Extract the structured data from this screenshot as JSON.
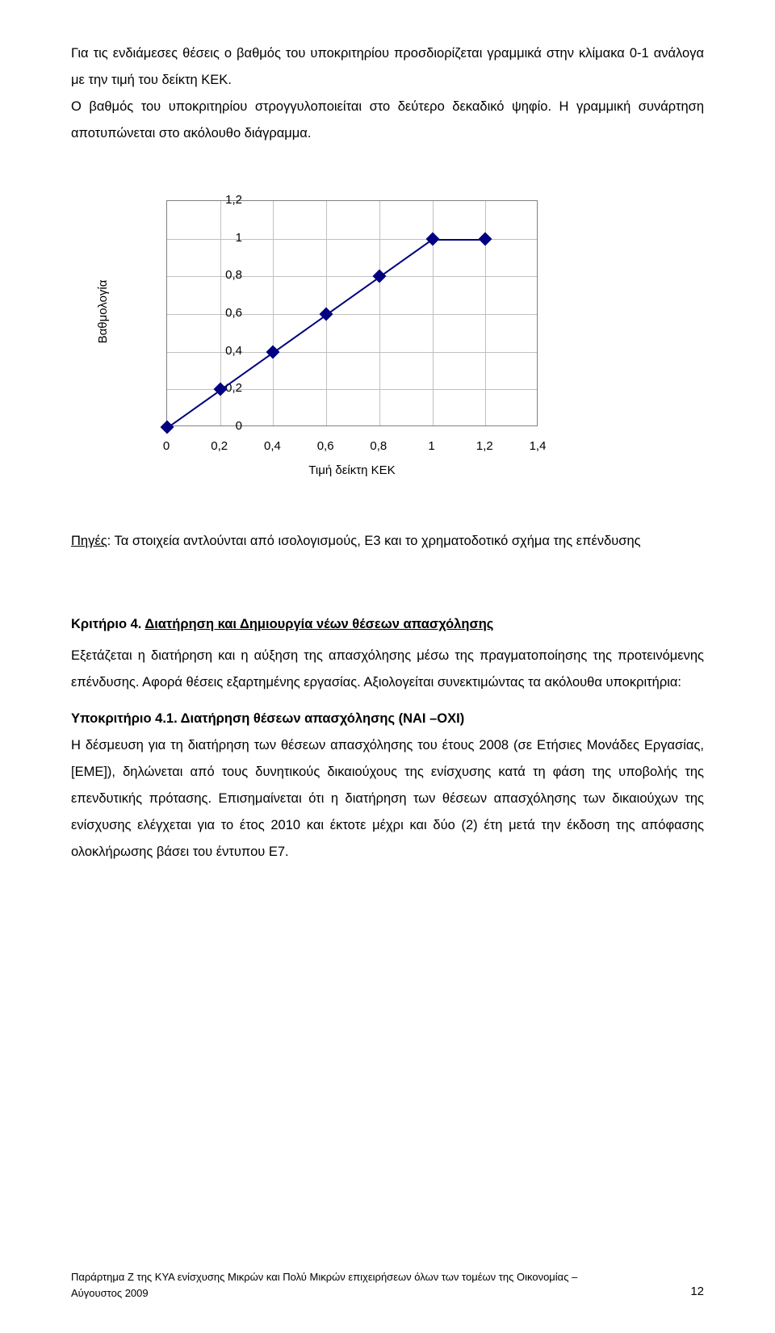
{
  "para1": "Για τις ενδιάμεσες θέσεις ο βαθμός του υποκριτηρίου προσδιορίζεται γραμμικά στην κλίμακα 0-1 ανάλογα με την τιμή του δείκτη ΚΕΚ.",
  "para2": "Ο βαθμός του υποκριτηρίου στρογγυλοποιείται στο δεύτερο δεκαδικό ψηφίο. Η γραμμική συνάρτηση αποτυπώνεται στο ακόλουθο διάγραμμα.",
  "chart": {
    "type": "line",
    "y_axis_label": "Βαθμολογία",
    "x_axis_label": "Τιμή δείκτη ΚΕΚ",
    "xmin": 0,
    "xmax": 1.4,
    "ymin": 0,
    "ymax": 1.2,
    "x_ticks": [
      0,
      0.2,
      0.4,
      0.6,
      0.8,
      1,
      1.2,
      1.4
    ],
    "x_tick_labels": [
      "0",
      "0,2",
      "0,4",
      "0,6",
      "0,8",
      "1",
      "1,2",
      "1,4"
    ],
    "y_ticks": [
      0,
      0.2,
      0.4,
      0.6,
      0.8,
      1,
      1.2
    ],
    "y_tick_labels": [
      "0",
      "0,2",
      "0,4",
      "0,6",
      "0,8",
      "1",
      "1,2"
    ],
    "points": [
      {
        "x": 0.0,
        "y": 0.0
      },
      {
        "x": 0.2,
        "y": 0.2
      },
      {
        "x": 0.4,
        "y": 0.4
      },
      {
        "x": 0.6,
        "y": 0.6
      },
      {
        "x": 0.8,
        "y": 0.8
      },
      {
        "x": 1.0,
        "y": 1.0
      },
      {
        "x": 1.2,
        "y": 1.0
      }
    ],
    "line_color": "#000080",
    "marker_color": "#000080",
    "marker_shape": "diamond",
    "grid_color": "#c0c0c0",
    "plot_border_color": "#808080",
    "background_color": "#ffffff",
    "label_fontsize": 15,
    "tick_fontsize": 15
  },
  "sources_label": "Πηγές",
  "sources_text": ": Τα στοιχεία αντλούνται από ισολογισμούς, Ε3 και το χρηματοδοτικό σχήμα της επένδυσης",
  "criterion4": {
    "prefix": "Κριτήριο 4.  ",
    "title": "Διατήρηση και Δημιουργία νέων θέσεων απασχόλησης",
    "body": "Εξετάζεται η διατήρηση και η αύξηση της απασχόλησης μέσω της πραγματοποίησης της προτεινόμενης επένδυσης. Αφορά θέσεις εξαρτημένης εργασίας. Αξιολογείται συνεκτιμώντας τα ακόλουθα υποκριτήρια:"
  },
  "sub41": {
    "title": "Υποκριτήριο 4.1. Διατήρηση θέσεων απασχόλησης (ΝΑΙ –ΟΧΙ)",
    "body": "Η δέσμευση για τη διατήρηση των θέσεων απασχόλησης του έτους 2008 (σε Ετήσιες Μονάδες Εργασίας, [ΕΜΕ]), δηλώνεται από τους δυνητικούς δικαιούχους της ενίσχυσης κατά τη φάση της υποβολής της επενδυτικής πρότασης. Επισημαίνεται ότι η διατήρηση των θέσεων απασχόλησης των δικαιούχων της ενίσχυσης ελέγχεται για το έτος 2010 και έκτοτε μέχρι και δύο (2)  έτη μετά την έκδοση της απόφασης ολοκλήρωσης βάσει του έντυπου Ε7."
  },
  "footer_left": "Παράρτημα Ζ της ΚΥΑ ενίσχυσης Μικρών και Πολύ Μικρών επιχειρήσεων όλων των τομέων της Οικονομίας – Αύγουστος 2009",
  "footer_page": "12"
}
